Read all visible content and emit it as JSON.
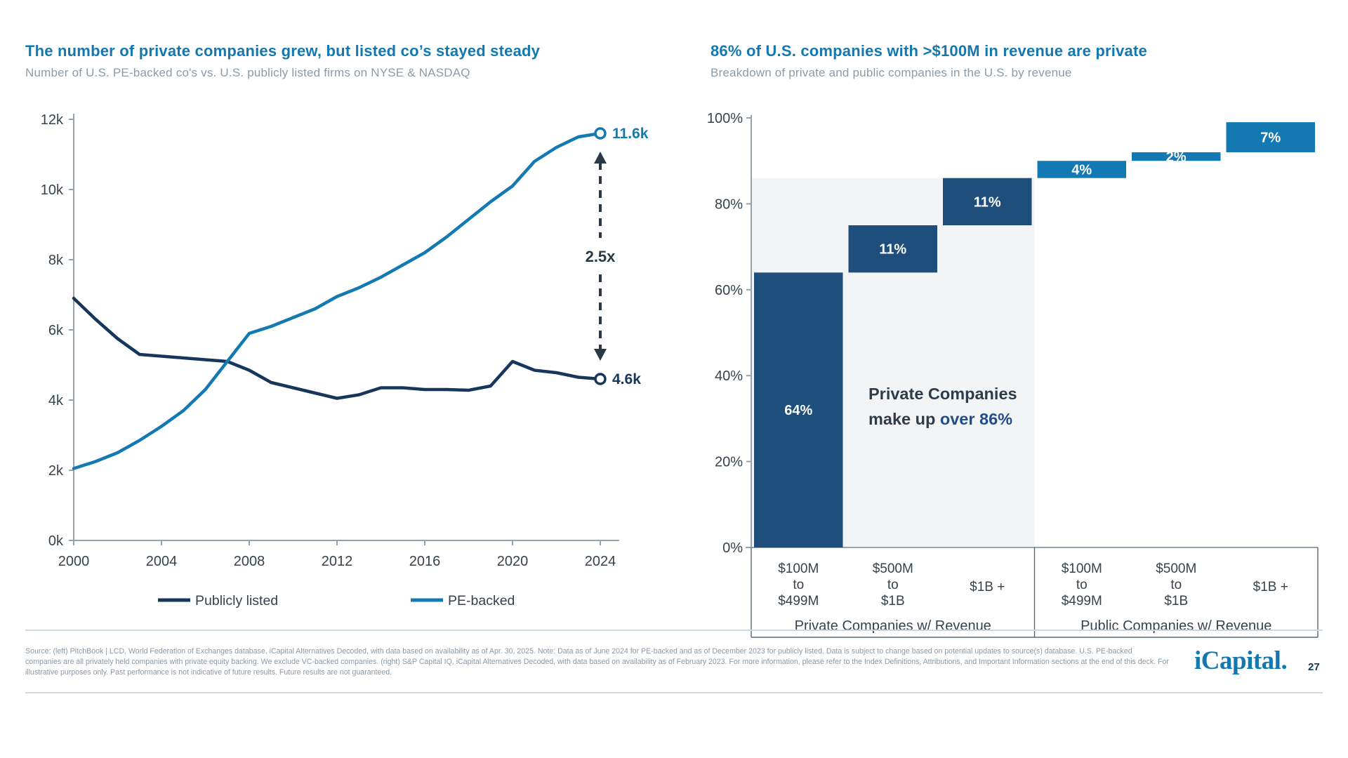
{
  "colors": {
    "title_blue": "#1478b0",
    "subtitle_gray": "#8d9aa6",
    "axis_line": "#98a2aa",
    "tick_label": "#37424c",
    "navy": "#16365c",
    "bar_navy": "#1f4e7d",
    "blue": "#1379b2",
    "annotation_dark": "#2b3947",
    "highlight_bg": "#f3f4f5",
    "highlight_text": "#2e3b48",
    "highlight_emph": "#1f4e8a"
  },
  "chart_data": [
    {
      "type": "line",
      "title": "The number of private companies grew, but listed co’s stayed steady",
      "subtitle": "Number of U.S. PE-backed co's vs. U.S. publicly listed firms on NYSE & NASDAQ",
      "x_start": 2000,
      "x_end": 2024,
      "x_ticks": [
        2000,
        2004,
        2008,
        2012,
        2016,
        2020,
        2024
      ],
      "ylim": [
        0,
        12
      ],
      "y_ticks": [
        "0k",
        "2k",
        "4k",
        "6k",
        "8k",
        "10k",
        "12k"
      ],
      "grid": false,
      "legend_position": "bottom",
      "series": [
        {
          "name": "Publicly listed",
          "color": "#16365c",
          "end_label": "4.6k",
          "values": [
            6.9,
            6.3,
            5.75,
            5.3,
            5.25,
            5.2,
            5.15,
            5.1,
            4.85,
            4.5,
            4.35,
            4.2,
            4.05,
            4.15,
            4.35,
            4.35,
            4.3,
            4.3,
            4.28,
            4.4,
            5.1,
            4.85,
            4.78,
            4.65,
            4.6
          ]
        },
        {
          "name": "PE-backed",
          "color": "#1379b2",
          "end_label": "11.6k",
          "values": [
            2.05,
            2.25,
            2.5,
            2.85,
            3.25,
            3.7,
            4.3,
            5.1,
            5.9,
            6.1,
            6.35,
            6.6,
            6.95,
            7.2,
            7.5,
            7.85,
            8.2,
            8.65,
            9.15,
            9.65,
            10.1,
            10.8,
            11.2,
            11.5,
            11.6
          ]
        }
      ],
      "annotation": {
        "label": "2.5x"
      }
    },
    {
      "type": "waterfall",
      "title": "86% of U.S. companies with >$100M in revenue are private",
      "subtitle": "Breakdown of private and public companies in the U.S. by revenue",
      "ylim": [
        0,
        100
      ],
      "y_ticks": [
        "0%",
        "20%",
        "40%",
        "60%",
        "80%",
        "100%"
      ],
      "groups": [
        {
          "label": "Private Companies w/ Revenue",
          "color": "#1f4e7d",
          "categories": [
            [
              "$100M",
              "to",
              "$499M"
            ],
            [
              "$500M",
              "to",
              "$1B"
            ],
            [
              "$1B +"
            ]
          ],
          "values": [
            64,
            11,
            11
          ],
          "value_labels": [
            "64%",
            "11%",
            "11%"
          ]
        },
        {
          "label": "Public Companies w/ Revenue",
          "color": "#1379b2",
          "categories": [
            [
              "$100M",
              "to",
              "$499M"
            ],
            [
              "$500M",
              "to",
              "$1B"
            ],
            [
              "$1B +"
            ]
          ],
          "values": [
            4,
            2,
            7
          ],
          "value_labels": [
            "4%",
            "2%",
            "7%"
          ]
        }
      ],
      "highlight": {
        "line1": "Private Companies",
        "line2_prefix": "make up ",
        "line2_emphasis": "over 86%",
        "coverage": 86
      }
    }
  ],
  "footer": {
    "source_text": "Source: (left) PitchBook | LCD, World Federation of Exchanges database, iCapital Alternatives Decoded, with data based on availability as of Apr. 30, 2025. Note: Data as of June 2024 for PE-backed and as of December 2023 for publicly listed. Data is subject to change based on potential updates to source(s) database. U.S. PE-backed companies are all privately held companies with private equity backing. We exclude VC-backed companies. (right) S&P Capital IQ, iCapital Alternatives Decoded, with data based on availability as of February 2023. For more information, please refer to the Index Definitions, Attributions, and Important Information sections at the end of this deck. For illustrative purposes only. Past performance is not indicative of future results. Future results are not guaranteed.",
    "logo_text": "iCapital.",
    "page_number": "27"
  }
}
